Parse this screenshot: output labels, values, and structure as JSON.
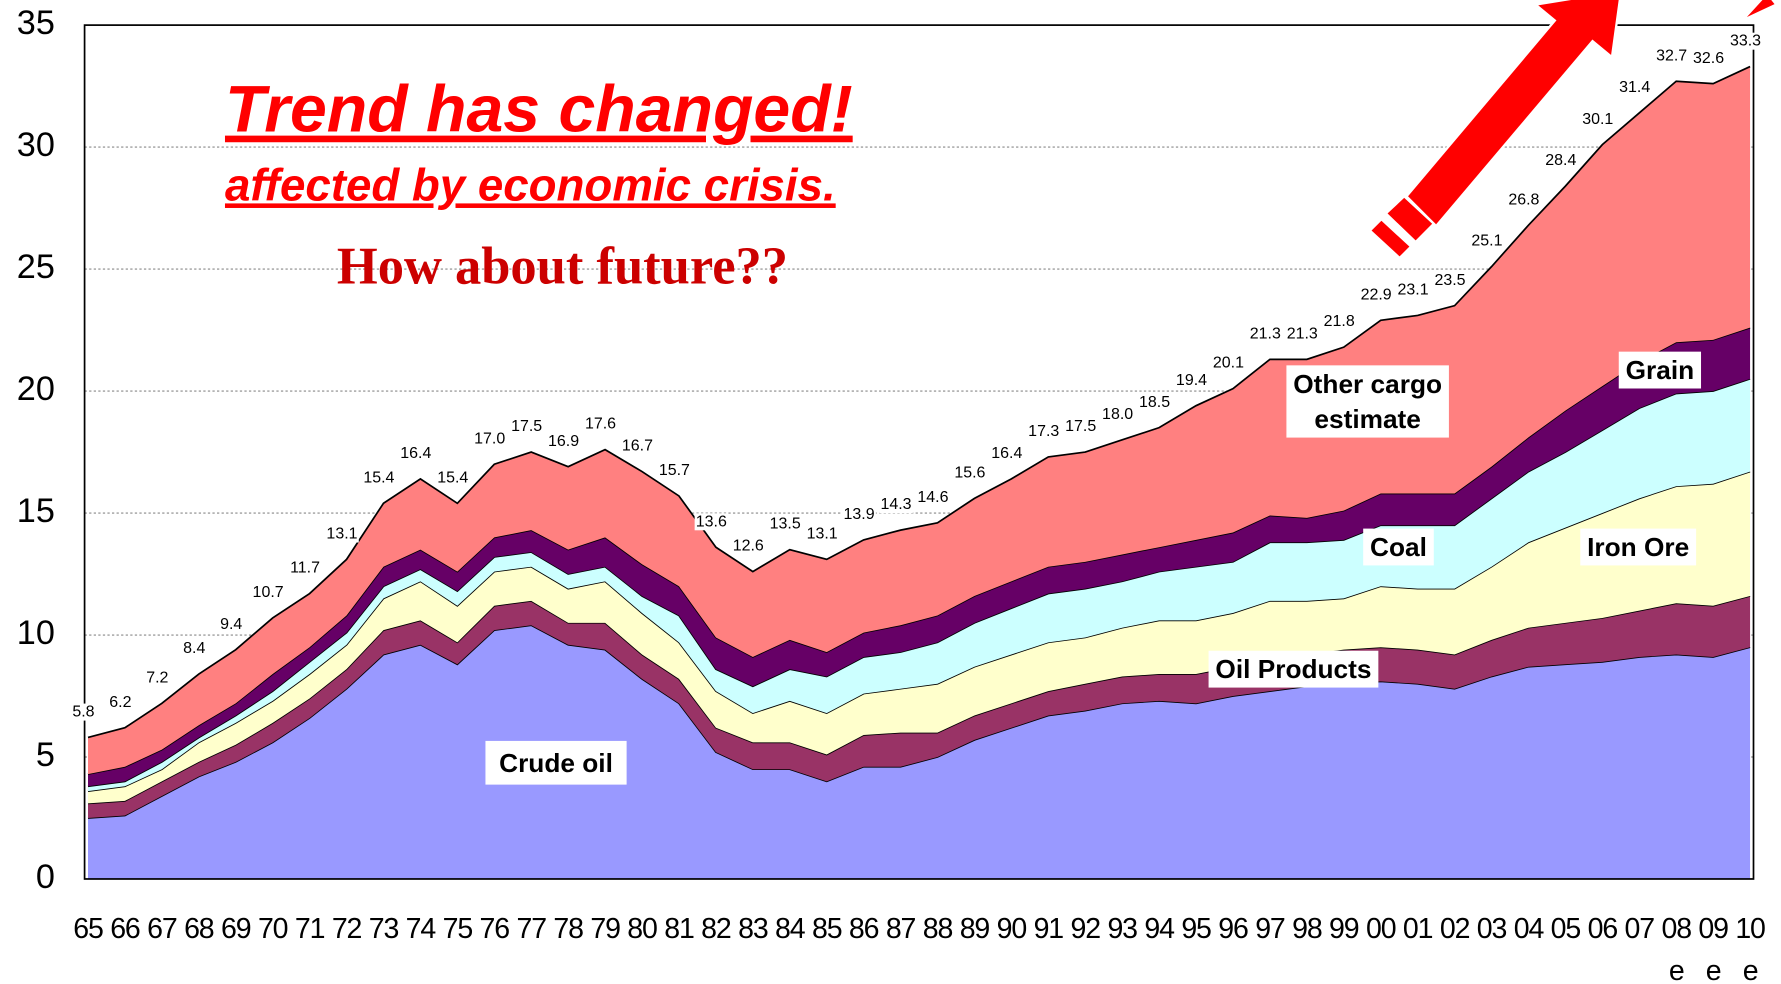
{
  "chart_data": {
    "type": "stacked_area",
    "categories": [
      "65",
      "66",
      "67",
      "68",
      "69",
      "70",
      "71",
      "72",
      "73",
      "74",
      "75",
      "76",
      "77",
      "78",
      "79",
      "80",
      "81",
      "82",
      "83",
      "84",
      "85",
      "86",
      "87",
      "88",
      "89",
      "90",
      "91",
      "92",
      "93",
      "94",
      "95",
      "96",
      "97",
      "98",
      "99",
      "00",
      "01",
      "02",
      "03",
      "04",
      "05",
      "06",
      "07",
      "08",
      "09",
      "10"
    ],
    "x_sublabels": [
      null,
      null,
      null,
      null,
      null,
      null,
      null,
      null,
      null,
      null,
      null,
      null,
      null,
      null,
      null,
      null,
      null,
      null,
      null,
      null,
      null,
      null,
      null,
      null,
      null,
      null,
      null,
      null,
      null,
      null,
      null,
      null,
      null,
      null,
      null,
      null,
      null,
      null,
      null,
      null,
      null,
      null,
      null,
      "e",
      "e",
      "e"
    ],
    "series": [
      {
        "name": "Crude oil",
        "color": "#9999ff",
        "values": [
          2.5,
          2.6,
          3.4,
          4.2,
          4.8,
          5.6,
          6.6,
          7.8,
          9.2,
          9.6,
          8.8,
          10.2,
          10.4,
          9.6,
          9.4,
          8.2,
          7.2,
          5.2,
          4.5,
          4.5,
          4.0,
          4.6,
          4.6,
          5.0,
          5.7,
          6.2,
          6.7,
          6.9,
          7.2,
          7.3,
          7.2,
          7.5,
          7.7,
          7.9,
          8.0,
          8.1,
          8.0,
          7.8,
          8.3,
          8.7,
          8.8,
          8.9,
          9.1,
          9.2,
          9.1,
          9.5
        ]
      },
      {
        "name": "Oil Products",
        "color": "#993366",
        "values": [
          0.6,
          0.6,
          0.6,
          0.6,
          0.7,
          0.8,
          0.8,
          0.8,
          1.0,
          1.0,
          0.9,
          1.0,
          1.0,
          0.9,
          1.1,
          1.0,
          1.0,
          1.0,
          1.1,
          1.1,
          1.1,
          1.3,
          1.4,
          1.0,
          1.0,
          1.0,
          1.0,
          1.1,
          1.1,
          1.1,
          1.2,
          1.2,
          1.3,
          1.3,
          1.4,
          1.4,
          1.4,
          1.4,
          1.5,
          1.6,
          1.7,
          1.8,
          1.9,
          2.1,
          2.1,
          2.1
        ]
      },
      {
        "name": "Iron Ore",
        "color": "#ffffcc",
        "values": [
          0.5,
          0.6,
          0.5,
          0.8,
          0.9,
          0.9,
          1.0,
          1.0,
          1.3,
          1.6,
          1.5,
          1.4,
          1.4,
          1.4,
          1.7,
          1.7,
          1.5,
          1.5,
          1.2,
          1.7,
          1.7,
          1.7,
          1.8,
          2.0,
          2.0,
          2.0,
          2.0,
          1.9,
          2.0,
          2.2,
          2.2,
          2.2,
          2.4,
          2.2,
          2.1,
          2.5,
          2.5,
          2.7,
          3.0,
          3.5,
          3.9,
          4.3,
          4.6,
          4.8,
          5.0,
          5.1
        ]
      },
      {
        "name": "Coal",
        "color": "#ccffff",
        "values": [
          0.2,
          0.2,
          0.3,
          0.2,
          0.3,
          0.4,
          0.5,
          0.5,
          0.5,
          0.5,
          0.6,
          0.6,
          0.6,
          0.6,
          0.6,
          0.7,
          1.1,
          0.9,
          1.1,
          1.3,
          1.5,
          1.5,
          1.5,
          1.7,
          1.8,
          1.9,
          2.0,
          2.0,
          1.9,
          2.0,
          2.2,
          2.1,
          2.4,
          2.4,
          2.4,
          2.5,
          2.6,
          2.6,
          2.8,
          2.9,
          3.1,
          3.4,
          3.7,
          3.8,
          3.8,
          3.8
        ]
      },
      {
        "name": "Grain",
        "color": "#660066",
        "values": [
          0.5,
          0.6,
          0.5,
          0.5,
          0.5,
          0.7,
          0.6,
          0.7,
          0.8,
          0.8,
          0.8,
          0.8,
          0.9,
          1.0,
          1.2,
          1.3,
          1.2,
          1.3,
          1.2,
          1.2,
          1.0,
          1.0,
          1.1,
          1.1,
          1.1,
          1.1,
          1.1,
          1.1,
          1.1,
          1.0,
          1.1,
          1.2,
          1.1,
          1.0,
          1.2,
          1.3,
          1.3,
          1.3,
          1.3,
          1.4,
          1.7,
          1.8,
          1.9,
          2.1,
          2.1,
          2.1
        ]
      },
      {
        "name": "Other cargo estimate",
        "color": "#ff8080",
        "values": [
          1.5,
          1.6,
          1.9,
          2.1,
          2.2,
          2.3,
          2.2,
          2.3,
          2.6,
          2.9,
          2.8,
          3.0,
          3.2,
          3.4,
          3.6,
          3.8,
          3.7,
          3.7,
          3.5,
          3.7,
          3.8,
          3.8,
          3.9,
          3.8,
          4.0,
          4.2,
          4.5,
          4.5,
          4.7,
          4.9,
          5.5,
          5.9,
          6.4,
          6.5,
          6.7,
          7.1,
          7.3,
          7.7,
          8.2,
          8.7,
          9.2,
          9.9,
          10.2,
          10.7,
          10.5,
          10.7
        ]
      }
    ],
    "total_labels": [
      "5.8",
      "6.2",
      "7.2",
      "8.4",
      "9.4",
      "10.7",
      "11.7",
      "13.1",
      "15.4",
      "16.4",
      "15.4",
      "17.0",
      "17.5",
      "16.9",
      "17.6",
      "16.7",
      "15.7",
      "13.6",
      "12.6",
      "13.5",
      "13.1",
      "13.9",
      "14.3",
      "14.6",
      "15.6",
      "16.4",
      "17.3",
      "17.5",
      "18.0",
      "18.5",
      "19.4",
      "20.1",
      "21.3",
      "21.3",
      "21.8",
      "22.9",
      "23.1",
      "23.5",
      "25.1",
      "26.8",
      "28.4",
      "30.1",
      "31.4",
      "32.7",
      "32.6",
      "33.3"
    ],
    "ylim": [
      0,
      35
    ],
    "yticks": [
      0,
      5,
      10,
      15,
      20,
      25,
      30,
      35
    ],
    "grid": true,
    "annotations": [
      "Trend has changed!",
      "affected by economic crisis.",
      "How about future??"
    ]
  }
}
